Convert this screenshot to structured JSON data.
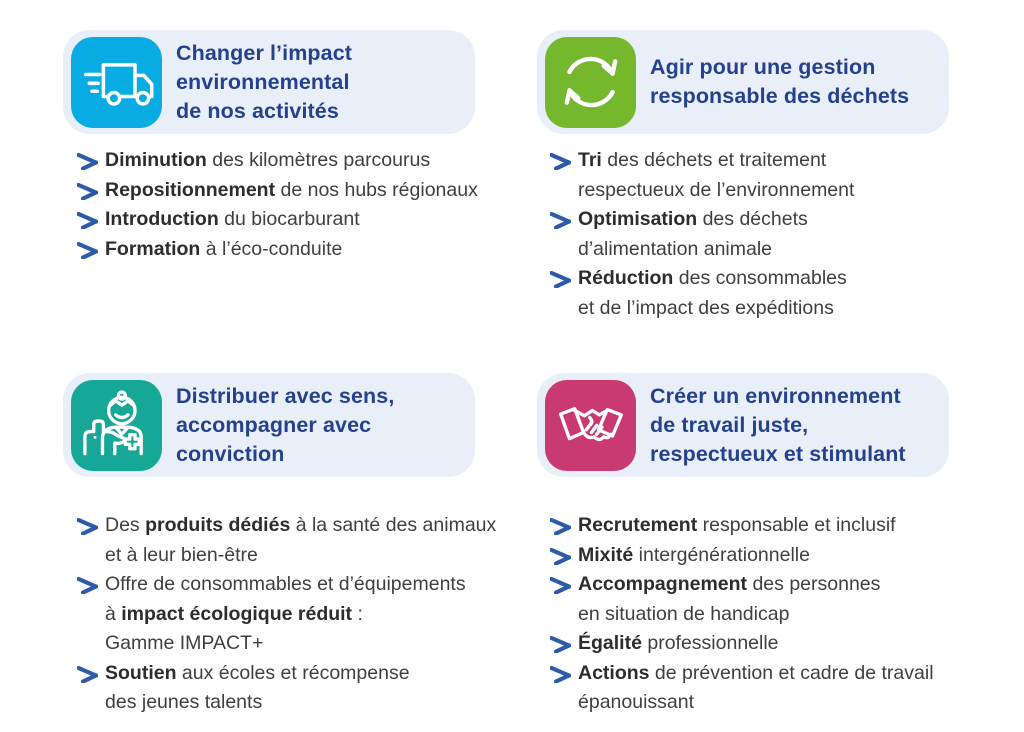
{
  "colors": {
    "card_bg": "#e9eff8",
    "heading": "#25418d",
    "arrow": "#2d5ba9",
    "text": "#3f3f3f",
    "tile_cyan": "#08ace2",
    "tile_green": "#76b82d",
    "tile_teal": "#16a797",
    "tile_pink": "#c83a70"
  },
  "cards": [
    {
      "id": "environment",
      "icon": "delivery-truck-icon",
      "tile_color": "#08ace2",
      "title": "Changer l’impact\nenvironnemental\nde nos activités",
      "bullets": [
        {
          "lines": [
            [
              {
                "t": "Diminution",
                "b": true
              },
              {
                "t": " des kilomètres parcourus",
                "b": false
              }
            ]
          ]
        },
        {
          "lines": [
            [
              {
                "t": "Repositionnement",
                "b": true
              },
              {
                "t": " de nos hubs régionaux",
                "b": false
              }
            ]
          ]
        },
        {
          "lines": [
            [
              {
                "t": "Introduction",
                "b": true
              },
              {
                "t": " du biocarburant",
                "b": false
              }
            ]
          ]
        },
        {
          "lines": [
            [
              {
                "t": "Formation",
                "b": true
              },
              {
                "t": " à l’éco-conduite",
                "b": false
              }
            ]
          ]
        }
      ]
    },
    {
      "id": "waste",
      "icon": "recycle-icon",
      "tile_color": "#76b82d",
      "title": "Agir pour une gestion\nresponsable des déchets",
      "bullets": [
        {
          "lines": [
            [
              {
                "t": "Tri",
                "b": true
              },
              {
                "t": " des déchets et traitement",
                "b": false
              }
            ],
            [
              {
                "t": "respectueux de l’environnement",
                "b": false
              }
            ]
          ]
        },
        {
          "lines": [
            [
              {
                "t": "Optimisation",
                "b": true
              },
              {
                "t": " des déchets",
                "b": false
              }
            ],
            [
              {
                "t": "d’alimentation animale",
                "b": false
              }
            ]
          ]
        },
        {
          "lines": [
            [
              {
                "t": "Réduction",
                "b": true
              },
              {
                "t": " des consommables",
                "b": false
              }
            ],
            [
              {
                "t": "et de l’impact des expéditions",
                "b": false
              }
            ]
          ]
        }
      ]
    },
    {
      "id": "distribution",
      "icon": "veterinarian-icon",
      "tile_color": "#16a797",
      "title": "Distribuer avec sens,\naccompagner avec\nconviction",
      "bullets": [
        {
          "lines": [
            [
              {
                "t": "Des ",
                "b": false
              },
              {
                "t": "produits dédiés",
                "b": true
              },
              {
                "t": " à la santé des animaux",
                "b": false
              }
            ],
            [
              {
                "t": "et à leur bien-être",
                "b": false
              }
            ]
          ]
        },
        {
          "lines": [
            [
              {
                "t": "Offre de consommables et d’équipements",
                "b": false
              }
            ],
            [
              {
                "t": "à ",
                "b": false
              },
              {
                "t": "impact écologique réduit",
                "b": true
              },
              {
                "t": " :",
                "b": false
              }
            ],
            [
              {
                "t": "Gamme IMPACT+",
                "b": false
              }
            ]
          ]
        },
        {
          "lines": [
            [
              {
                "t": "Soutien",
                "b": true
              },
              {
                "t": " aux écoles et récompense",
                "b": false
              }
            ],
            [
              {
                "t": "des jeunes talents",
                "b": false
              }
            ]
          ]
        }
      ]
    },
    {
      "id": "workplace",
      "icon": "handshake-icon",
      "tile_color": "#c83a70",
      "title": "Créer un environnement\nde travail juste,\nrespectueux et stimulant",
      "bullets": [
        {
          "lines": [
            [
              {
                "t": "Recrutement",
                "b": true
              },
              {
                "t": " responsable et inclusif",
                "b": false
              }
            ]
          ]
        },
        {
          "lines": [
            [
              {
                "t": "Mixité",
                "b": true
              },
              {
                "t": " intergénérationnelle",
                "b": false
              }
            ]
          ]
        },
        {
          "lines": [
            [
              {
                "t": "Accompagnement",
                "b": true
              },
              {
                "t": " des personnes",
                "b": false
              }
            ],
            [
              {
                "t": "en situation de handicap",
                "b": false
              }
            ]
          ]
        },
        {
          "lines": [
            [
              {
                "t": "Égalité",
                "b": true
              },
              {
                "t": " professionnelle",
                "b": false
              }
            ]
          ]
        },
        {
          "lines": [
            [
              {
                "t": "Actions",
                "b": true
              },
              {
                "t": " de prévention et cadre de travail",
                "b": false
              }
            ],
            [
              {
                "t": "épanouissant",
                "b": false
              }
            ]
          ]
        }
      ]
    }
  ]
}
